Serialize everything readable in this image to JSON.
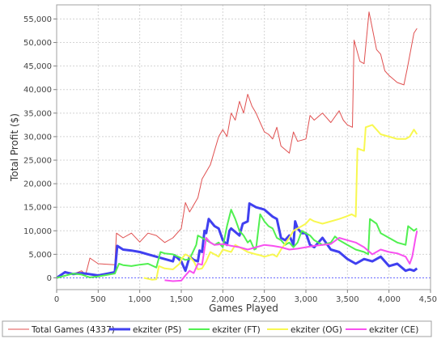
{
  "chart_data": {
    "type": "line",
    "title": "",
    "xlabel": "Games Played",
    "ylabel": "Total Profit ($)",
    "xlim": [
      0,
      4500
    ],
    "ylim": [
      -2500,
      58000
    ],
    "x_ticks": [
      0,
      500,
      1000,
      1500,
      2000,
      2500,
      3000,
      3500,
      4000,
      4500
    ],
    "x_tick_labels": [
      "0",
      "500",
      "1,000",
      "1,500",
      "2,000",
      "2,500",
      "3,000",
      "3,500",
      "4,000",
      "4,500"
    ],
    "y_ticks": [
      0,
      5000,
      10000,
      15000,
      20000,
      25000,
      30000,
      35000,
      40000,
      45000,
      50000,
      55000
    ],
    "y_tick_labels": [
      "0",
      "5,000",
      "10,000",
      "15,000",
      "20,000",
      "25,000",
      "30,000",
      "35,000",
      "40,000",
      "45,000",
      "50,000",
      "55,000"
    ],
    "grid": true,
    "zero_line": true,
    "legend_position": "bottom",
    "series": [
      {
        "name": "Total Games (4337)",
        "color": "#e05050",
        "line_width": 1,
        "points": [
          [
            0,
            0
          ],
          [
            100,
            1400
          ],
          [
            200,
            800
          ],
          [
            300,
            1500
          ],
          [
            350,
            700
          ],
          [
            400,
            4200
          ],
          [
            500,
            3000
          ],
          [
            700,
            2800
          ],
          [
            720,
            9500
          ],
          [
            800,
            8500
          ],
          [
            900,
            9500
          ],
          [
            1000,
            7600
          ],
          [
            1100,
            9500
          ],
          [
            1200,
            9000
          ],
          [
            1300,
            7500
          ],
          [
            1400,
            8500
          ],
          [
            1500,
            10500
          ],
          [
            1550,
            16000
          ],
          [
            1600,
            14000
          ],
          [
            1700,
            17000
          ],
          [
            1750,
            21000
          ],
          [
            1800,
            22500
          ],
          [
            1850,
            24000
          ],
          [
            1950,
            30000
          ],
          [
            2000,
            31500
          ],
          [
            2050,
            30000
          ],
          [
            2100,
            35000
          ],
          [
            2150,
            33500
          ],
          [
            2200,
            37500
          ],
          [
            2250,
            35000
          ],
          [
            2300,
            39000
          ],
          [
            2350,
            36500
          ],
          [
            2400,
            35000
          ],
          [
            2450,
            33000
          ],
          [
            2500,
            31000
          ],
          [
            2550,
            30500
          ],
          [
            2600,
            29500
          ],
          [
            2650,
            32000
          ],
          [
            2700,
            28000
          ],
          [
            2800,
            26500
          ],
          [
            2850,
            31000
          ],
          [
            2900,
            29000
          ],
          [
            3000,
            29500
          ],
          [
            3050,
            34500
          ],
          [
            3100,
            33500
          ],
          [
            3200,
            35000
          ],
          [
            3300,
            33000
          ],
          [
            3400,
            35500
          ],
          [
            3450,
            33500
          ],
          [
            3500,
            32500
          ],
          [
            3560,
            32000
          ],
          [
            3580,
            50500
          ],
          [
            3650,
            46000
          ],
          [
            3700,
            45500
          ],
          [
            3760,
            56500
          ],
          [
            3800,
            53000
          ],
          [
            3850,
            48500
          ],
          [
            3900,
            47500
          ],
          [
            3950,
            44000
          ],
          [
            4000,
            43000
          ],
          [
            4100,
            41500
          ],
          [
            4180,
            41000
          ],
          [
            4220,
            44500
          ],
          [
            4300,
            52000
          ],
          [
            4337,
            53000
          ]
        ]
      },
      {
        "name": "ekziter (PS)",
        "color": "#4040f0",
        "line_width": 3,
        "points": [
          [
            0,
            0
          ],
          [
            100,
            1200
          ],
          [
            200,
            800
          ],
          [
            300,
            1000
          ],
          [
            350,
            900
          ],
          [
            500,
            500
          ],
          [
            700,
            1200
          ],
          [
            730,
            6800
          ],
          [
            800,
            6000
          ],
          [
            900,
            5800
          ],
          [
            1000,
            5500
          ],
          [
            1100,
            5000
          ],
          [
            1200,
            4500
          ],
          [
            1300,
            4000
          ],
          [
            1400,
            3500
          ],
          [
            1420,
            4800
          ],
          [
            1500,
            3500
          ],
          [
            1550,
            1500
          ],
          [
            1600,
            4500
          ],
          [
            1650,
            3800
          ],
          [
            1700,
            3500
          ],
          [
            1720,
            5800
          ],
          [
            1750,
            5500
          ],
          [
            1780,
            10000
          ],
          [
            1800,
            9500
          ],
          [
            1830,
            12500
          ],
          [
            1900,
            11000
          ],
          [
            1950,
            10500
          ],
          [
            2000,
            8000
          ],
          [
            2050,
            7000
          ],
          [
            2080,
            10000
          ],
          [
            2100,
            10500
          ],
          [
            2200,
            9000
          ],
          [
            2240,
            11500
          ],
          [
            2300,
            12000
          ],
          [
            2320,
            15800
          ],
          [
            2400,
            15000
          ],
          [
            2500,
            14500
          ],
          [
            2600,
            13000
          ],
          [
            2650,
            12500
          ],
          [
            2700,
            8500
          ],
          [
            2750,
            8000
          ],
          [
            2800,
            9000
          ],
          [
            2850,
            7000
          ],
          [
            2870,
            12000
          ],
          [
            2900,
            10500
          ],
          [
            2950,
            9500
          ],
          [
            3000,
            9500
          ],
          [
            3050,
            7000
          ],
          [
            3100,
            6500
          ],
          [
            3200,
            8500
          ],
          [
            3300,
            6000
          ],
          [
            3400,
            5500
          ],
          [
            3500,
            4000
          ],
          [
            3600,
            3000
          ],
          [
            3700,
            4000
          ],
          [
            3800,
            3500
          ],
          [
            3900,
            4500
          ],
          [
            4000,
            2500
          ],
          [
            4100,
            3000
          ],
          [
            4200,
            1500
          ],
          [
            4250,
            1800
          ],
          [
            4300,
            1500
          ],
          [
            4337,
            2000
          ]
        ]
      },
      {
        "name": "ekziter (FT)",
        "color": "#50f050",
        "line_width": 2,
        "points": [
          [
            0,
            0
          ],
          [
            200,
            900
          ],
          [
            300,
            700
          ],
          [
            400,
            100
          ],
          [
            500,
            300
          ],
          [
            700,
            900
          ],
          [
            750,
            3000
          ],
          [
            800,
            2700
          ],
          [
            900,
            2500
          ],
          [
            1000,
            2800
          ],
          [
            1100,
            3000
          ],
          [
            1200,
            2200
          ],
          [
            1250,
            5500
          ],
          [
            1300,
            5200
          ],
          [
            1400,
            5000
          ],
          [
            1500,
            4200
          ],
          [
            1550,
            3800
          ],
          [
            1600,
            4000
          ],
          [
            1680,
            7000
          ],
          [
            1700,
            9000
          ],
          [
            1750,
            8500
          ],
          [
            1800,
            8000
          ],
          [
            1850,
            7500
          ],
          [
            1900,
            7000
          ],
          [
            1950,
            7500
          ],
          [
            2000,
            6500
          ],
          [
            2050,
            11000
          ],
          [
            2100,
            14500
          ],
          [
            2150,
            12500
          ],
          [
            2200,
            10000
          ],
          [
            2250,
            9000
          ],
          [
            2300,
            7500
          ],
          [
            2330,
            8000
          ],
          [
            2380,
            6000
          ],
          [
            2400,
            6200
          ],
          [
            2450,
            13500
          ],
          [
            2500,
            12000
          ],
          [
            2550,
            11000
          ],
          [
            2600,
            10500
          ],
          [
            2650,
            8500
          ],
          [
            2700,
            8000
          ],
          [
            2750,
            7000
          ],
          [
            2800,
            7500
          ],
          [
            2850,
            6500
          ],
          [
            2900,
            7500
          ],
          [
            2950,
            10000
          ],
          [
            3000,
            9500
          ],
          [
            3050,
            9000
          ],
          [
            3100,
            8000
          ],
          [
            3200,
            7000
          ],
          [
            3300,
            7500
          ],
          [
            3350,
            8800
          ],
          [
            3400,
            8000
          ],
          [
            3500,
            7000
          ],
          [
            3600,
            6000
          ],
          [
            3700,
            5500
          ],
          [
            3750,
            5000
          ],
          [
            3770,
            12500
          ],
          [
            3850,
            11500
          ],
          [
            3900,
            9500
          ],
          [
            4000,
            8500
          ],
          [
            4100,
            7500
          ],
          [
            4200,
            7000
          ],
          [
            4230,
            11000
          ],
          [
            4300,
            10000
          ],
          [
            4337,
            10500
          ]
        ]
      },
      {
        "name": "ekziter (OG)",
        "color": "#f8f850",
        "line_width": 2,
        "points": [
          [
            1050,
            0
          ],
          [
            1100,
            -200
          ],
          [
            1150,
            -400
          ],
          [
            1200,
            -300
          ],
          [
            1230,
            2500
          ],
          [
            1300,
            2000
          ],
          [
            1400,
            1800
          ],
          [
            1480,
            3000
          ],
          [
            1500,
            4000
          ],
          [
            1550,
            5000
          ],
          [
            1600,
            4500
          ],
          [
            1650,
            3500
          ],
          [
            1700,
            1800
          ],
          [
            1750,
            2000
          ],
          [
            1800,
            3500
          ],
          [
            1850,
            5500
          ],
          [
            1900,
            5000
          ],
          [
            1950,
            4500
          ],
          [
            2000,
            6000
          ],
          [
            2100,
            5500
          ],
          [
            2150,
            7000
          ],
          [
            2200,
            6500
          ],
          [
            2300,
            5500
          ],
          [
            2400,
            5000
          ],
          [
            2450,
            4800
          ],
          [
            2500,
            4500
          ],
          [
            2600,
            5000
          ],
          [
            2650,
            4500
          ],
          [
            2700,
            6000
          ],
          [
            2800,
            8500
          ],
          [
            2850,
            10000
          ],
          [
            2900,
            10500
          ],
          [
            2950,
            11000
          ],
          [
            3000,
            11500
          ],
          [
            3050,
            12500
          ],
          [
            3100,
            12000
          ],
          [
            3200,
            11500
          ],
          [
            3300,
            12000
          ],
          [
            3400,
            12500
          ],
          [
            3480,
            13000
          ],
          [
            3550,
            13500
          ],
          [
            3600,
            13000
          ],
          [
            3620,
            27500
          ],
          [
            3700,
            27000
          ],
          [
            3720,
            32000
          ],
          [
            3800,
            32500
          ],
          [
            3850,
            31500
          ],
          [
            3900,
            30500
          ],
          [
            4000,
            30000
          ],
          [
            4100,
            29500
          ],
          [
            4200,
            29500
          ],
          [
            4250,
            30000
          ],
          [
            4300,
            31500
          ],
          [
            4337,
            30500
          ]
        ]
      },
      {
        "name": "ekziter (CE)",
        "color": "#f850f0",
        "line_width": 2,
        "points": [
          [
            1300,
            -500
          ],
          [
            1400,
            -700
          ],
          [
            1500,
            -600
          ],
          [
            1550,
            500
          ],
          [
            1600,
            1500
          ],
          [
            1650,
            1000
          ],
          [
            1700,
            3000
          ],
          [
            1750,
            2800
          ],
          [
            1800,
            8500
          ],
          [
            1850,
            7500
          ],
          [
            1900,
            7000
          ],
          [
            2000,
            7200
          ],
          [
            2100,
            6800
          ],
          [
            2200,
            6500
          ],
          [
            2300,
            6000
          ],
          [
            2400,
            6500
          ],
          [
            2500,
            7000
          ],
          [
            2600,
            6800
          ],
          [
            2700,
            6500
          ],
          [
            2800,
            6000
          ],
          [
            2900,
            6200
          ],
          [
            3000,
            6500
          ],
          [
            3100,
            6800
          ],
          [
            3200,
            7000
          ],
          [
            3300,
            7200
          ],
          [
            3400,
            8500
          ],
          [
            3500,
            8000
          ],
          [
            3600,
            7500
          ],
          [
            3700,
            6500
          ],
          [
            3800,
            5000
          ],
          [
            3900,
            6000
          ],
          [
            4000,
            5500
          ],
          [
            4100,
            5200
          ],
          [
            4200,
            4500
          ],
          [
            4250,
            3000
          ],
          [
            4280,
            4500
          ],
          [
            4300,
            6500
          ],
          [
            4320,
            8500
          ],
          [
            4337,
            10000
          ]
        ]
      }
    ]
  }
}
